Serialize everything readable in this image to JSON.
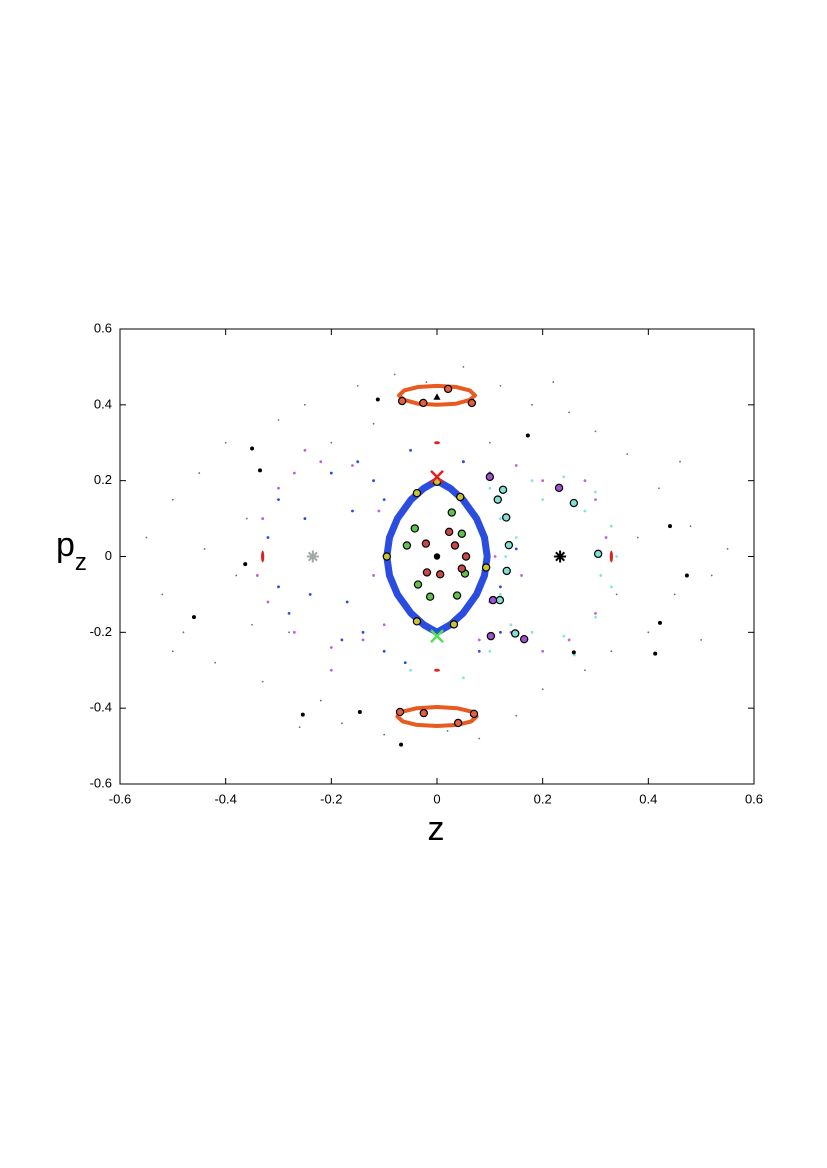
{
  "chart_data": {
    "type": "scatter",
    "xlabel": "z",
    "ylabel": "p",
    "ylabel_sub": "z",
    "xlim": [
      -0.6,
      0.6
    ],
    "ylim": [
      -0.6,
      0.6
    ],
    "xticks": [
      -0.6,
      -0.4,
      -0.2,
      0,
      0.2,
      0.4,
      0.6
    ],
    "yticks": [
      -0.6,
      -0.4,
      -0.2,
      0,
      0.2,
      0.4,
      0.6
    ],
    "series": [
      {
        "color": "#6a6a86",
        "marker": "speck",
        "x": [
          -0.55,
          -0.52,
          -0.5,
          -0.48,
          -0.45,
          -0.42,
          -0.4,
          -0.38,
          -0.36,
          -0.33,
          -0.3,
          -0.28,
          -0.25,
          -0.22,
          -0.2,
          -0.18,
          -0.15,
          -0.12,
          -0.1,
          -0.08,
          -0.05,
          0.05,
          0.08,
          0.12,
          0.15,
          0.18,
          0.2,
          0.25,
          0.28,
          0.3,
          0.33,
          0.36,
          0.4,
          0.42,
          0.45,
          0.48,
          0.52,
          0.55,
          0.38,
          -0.44,
          0.34,
          -0.35,
          0.22,
          -0.26,
          0.1,
          -0.02,
          0.02,
          0.46,
          -0.5,
          0.5
        ],
        "y": [
          0.05,
          -0.1,
          0.15,
          -0.2,
          0.22,
          -0.28,
          0.3,
          -0.05,
          0.1,
          -0.33,
          0.36,
          -0.2,
          0.4,
          -0.38,
          0.3,
          -0.44,
          0.45,
          0.35,
          -0.47,
          0.48,
          -0.3,
          0.5,
          -0.48,
          0.45,
          -0.42,
          0.4,
          -0.35,
          0.38,
          -0.3,
          0.33,
          -0.25,
          0.27,
          -0.2,
          0.18,
          -0.1,
          0.08,
          -0.05,
          0.02,
          0.05,
          0.02,
          -0.1,
          -0.18,
          0.46,
          -0.45,
          0.3,
          0.46,
          -0.46,
          0.25,
          -0.25,
          -0.22
        ]
      },
      {
        "color": "#c060e0",
        "marker": "point",
        "x": [
          -0.33,
          -0.34,
          -0.32,
          -0.3,
          -0.27,
          -0.22,
          -0.16,
          -0.12,
          -0.27,
          -0.2,
          -0.14,
          -0.1,
          -0.11,
          -0.12,
          -0.25,
          -0.2,
          0.1,
          0.15,
          0.2,
          0.12,
          0.11,
          0.1,
          0.14,
          0.2,
          0.25,
          0.3,
          0.3,
          0.28,
          0.32,
          0.16,
          0.05,
          0.08
        ],
        "y": [
          0.1,
          -0.05,
          -0.12,
          0.18,
          0.22,
          0.25,
          0.24,
          0.2,
          -0.2,
          -0.24,
          -0.22,
          -0.18,
          0.12,
          -0.05,
          0.28,
          -0.3,
          0.22,
          0.24,
          0.2,
          0.15,
          0.0,
          -0.12,
          -0.2,
          -0.25,
          -0.22,
          -0.15,
          0.15,
          0.2,
          0.05,
          -0.05,
          0.25,
          -0.22
        ]
      },
      {
        "color": "#80e8d8",
        "marker": "point",
        "x": [
          0.1,
          0.12,
          0.13,
          0.12,
          0.14,
          0.18,
          0.24,
          0.3,
          0.33,
          0.34,
          0.33,
          0.3,
          0.24,
          0.18,
          0.2,
          0.28,
          0.1,
          -0.05,
          0.05,
          0.15,
          0.31,
          0.26
        ],
        "y": [
          0.18,
          0.1,
          0.0,
          -0.1,
          -0.18,
          0.2,
          0.21,
          0.17,
          0.08,
          0.0,
          -0.08,
          -0.16,
          -0.21,
          -0.2,
          0.15,
          0.12,
          -0.25,
          -0.3,
          -0.32,
          0.05,
          -0.05,
          -0.26
        ]
      },
      {
        "color": "#2a4de0",
        "marker": "point",
        "x": [
          -0.3,
          -0.32,
          -0.3,
          -0.28,
          -0.2,
          -0.15,
          -0.12,
          -0.1,
          -0.14,
          -0.1,
          -0.18,
          0.05,
          0.1,
          0.12,
          0.08,
          -0.05,
          -0.06,
          0.13,
          0.12,
          -0.25,
          -0.24,
          -0.16,
          -0.17,
          0.15
        ],
        "y": [
          0.15,
          0.05,
          -0.08,
          -0.15,
          0.22,
          0.25,
          0.2,
          0.15,
          -0.2,
          -0.25,
          -0.22,
          0.25,
          0.22,
          -0.2,
          -0.25,
          0.28,
          -0.28,
          0.1,
          -0.08,
          0.1,
          -0.1,
          0.12,
          -0.12,
          0.02
        ]
      },
      {
        "color": "#2a4de0",
        "marker": "band",
        "x": [
          0,
          0.025,
          0.049,
          0.075,
          0.09,
          0.095,
          0.09,
          0.075,
          0.049,
          0.025,
          0,
          -0.025,
          -0.049,
          -0.075,
          -0.09,
          -0.095,
          -0.09,
          -0.075,
          -0.049,
          -0.025
        ],
        "y": [
          0.2,
          0.18,
          0.15,
          0.1,
          0.05,
          0,
          -0.05,
          -0.1,
          -0.15,
          -0.18,
          -0.2,
          -0.18,
          -0.15,
          -0.1,
          -0.05,
          0,
          0.05,
          0.1,
          0.15,
          0.18
        ]
      },
      {
        "color": "#e85a20",
        "marker": "ring",
        "x": [
          0.072,
          0.062,
          0.036,
          0,
          -0.036,
          -0.062,
          -0.072,
          -0.062,
          -0.036,
          0,
          0.036,
          0.062
        ],
        "y": [
          0.425,
          0.438,
          0.447,
          0.45,
          0.447,
          0.438,
          0.425,
          0.413,
          0.403,
          0.4,
          0.403,
          0.413
        ]
      },
      {
        "color": "#e85a20",
        "marker": "ring",
        "x": [
          0.075,
          0.065,
          0.038,
          0,
          -0.038,
          -0.065,
          -0.075,
          -0.065,
          -0.038,
          0,
          0.038,
          0.065
        ],
        "y": [
          -0.422,
          -0.409,
          -0.4,
          -0.397,
          -0.4,
          -0.409,
          -0.422,
          -0.435,
          -0.444,
          -0.447,
          -0.444,
          -0.435
        ]
      },
      {
        "color": "#c8c23c",
        "marker": "circle",
        "x": [
          -0.038,
          0,
          0.044,
          -0.095,
          0.093,
          -0.038,
          0.032
        ],
        "y": [
          0.167,
          0.197,
          0.157,
          0,
          -0.029,
          -0.171,
          -0.179
        ]
      },
      {
        "color": "#5ec34a",
        "marker": "circle",
        "x": [
          -0.042,
          0.028,
          0.047,
          -0.057,
          0.053,
          -0.036,
          -0.013,
          0.038
        ],
        "y": [
          0.074,
          0.116,
          0.06,
          0.029,
          -0.045,
          -0.074,
          -0.106,
          -0.103
        ]
      },
      {
        "color": "#c84848",
        "marker": "circle",
        "x": [
          0.023,
          -0.021,
          0.034,
          0.055,
          0.047,
          -0.019,
          0.006
        ],
        "y": [
          0.065,
          0.034,
          0.029,
          0,
          -0.032,
          -0.042,
          -0.047
        ]
      },
      {
        "color": "#80e0d4",
        "marker": "circle",
        "x": [
          0.125,
          0.115,
          0.131,
          0.136,
          0.132,
          0.119,
          0.148,
          0.259,
          0.305
        ],
        "y": [
          0.176,
          0.15,
          0.103,
          0.03,
          -0.038,
          -0.115,
          -0.203,
          0.141,
          0.007
        ]
      },
      {
        "color": "#a050d0",
        "marker": "circle",
        "x": [
          0.1,
          0.231,
          0.106,
          0.102,
          0.165
        ],
        "y": [
          0.21,
          0.181,
          -0.115,
          -0.21,
          -0.218
        ]
      },
      {
        "color": "#e06040",
        "marker": "circle",
        "x": [
          -0.066,
          -0.026,
          0.021,
          0.066,
          -0.07,
          -0.025,
          0.04,
          0.07
        ],
        "y": [
          0.41,
          0.405,
          0.442,
          0.405,
          -0.41,
          -0.413,
          -0.439,
          -0.415
        ]
      },
      {
        "color": "#000000",
        "marker": "dot",
        "x": [
          -0.112,
          -0.35,
          -0.335,
          -0.363,
          -0.46,
          -0.254,
          -0.146,
          -0.068,
          0.172,
          0.441,
          0.473,
          0.422,
          0.413,
          0.259
        ],
        "y": [
          0.414,
          0.285,
          0.227,
          -0.02,
          -0.16,
          -0.417,
          -0.41,
          -0.496,
          0.319,
          0.08,
          -0.05,
          -0.175,
          -0.256,
          -0.253
        ]
      },
      {
        "color": "#e02020",
        "marker": "vdash",
        "x": [
          -0.33,
          0.33
        ],
        "y": [
          0,
          0
        ]
      },
      {
        "color": "#e02020",
        "marker": "hdash",
        "x": [
          0,
          0
        ],
        "y": [
          0.3,
          -0.3
        ]
      },
      {
        "color": "#e02020",
        "marker": "x",
        "x": [
          0
        ],
        "y": [
          0.21
        ]
      },
      {
        "color": "#50e050",
        "marker": "x",
        "x": [
          0
        ],
        "y": [
          -0.21
        ]
      },
      {
        "color": "#a0a8a8",
        "marker": "asterisk",
        "x": [
          -0.235
        ],
        "y": [
          0
        ]
      },
      {
        "color": "#000000",
        "marker": "asterisk",
        "x": [
          0.233
        ],
        "y": [
          0
        ]
      },
      {
        "color": "#000000",
        "marker": "triangle",
        "x": [
          0
        ],
        "y": [
          0.42
        ]
      },
      {
        "color": "#000000",
        "marker": "bigdot",
        "x": [
          0
        ],
        "y": [
          0
        ]
      }
    ]
  }
}
